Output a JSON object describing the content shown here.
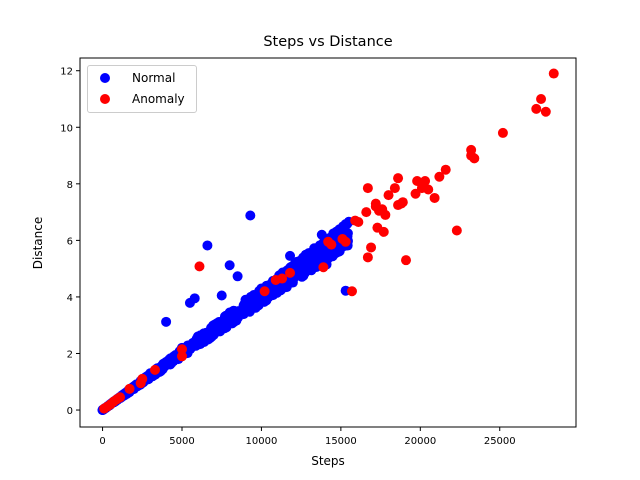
{
  "figure": {
    "title": "Steps vs Distance",
    "xlabel": "Steps",
    "ylabel": "Distance",
    "legend": [
      {
        "label": "Normal",
        "color": "#0000ff"
      },
      {
        "label": "Anomaly",
        "color": "#ff0000"
      }
    ]
  },
  "chart_data": {
    "type": "scatter",
    "title": "Steps vs Distance",
    "xlabel": "Steps",
    "ylabel": "Distance",
    "xlim": [
      -1420,
      29800
    ],
    "ylim": [
      -0.6,
      12.45
    ],
    "xticks": [
      0,
      5000,
      10000,
      15000,
      20000,
      25000
    ],
    "yticks": [
      0,
      2,
      4,
      6,
      8,
      10,
      12
    ],
    "grid": false,
    "legend_position": "upper left",
    "series": [
      {
        "name": "Normal",
        "color": "#0000ff",
        "band": {
          "slope_km_per_step_low": 0.000375,
          "slope_km_per_step_high": 0.00043,
          "x_max": 15500
        },
        "points": [
          [
            9300,
            6.88
          ],
          [
            6600,
            5.82
          ],
          [
            8000,
            5.12
          ],
          [
            8500,
            4.73
          ],
          [
            7500,
            4.05
          ],
          [
            5500,
            3.79
          ],
          [
            5800,
            3.95
          ],
          [
            4000,
            3.12
          ],
          [
            13800,
            6.2
          ],
          [
            15400,
            6.2
          ],
          [
            15300,
            4.22
          ],
          [
            13300,
            5.15
          ],
          [
            14100,
            5.15
          ],
          [
            11800,
            5.45
          ],
          [
            12500,
            5.3
          ],
          [
            12500,
            5.1
          ],
          [
            10000,
            4.3
          ],
          [
            9000,
            3.9
          ],
          [
            8000,
            3.45
          ],
          [
            7000,
            3.0
          ],
          [
            6000,
            2.6
          ],
          [
            5000,
            2.2
          ],
          [
            4000,
            1.7
          ],
          [
            3000,
            1.3
          ],
          [
            2000,
            0.85
          ],
          [
            1000,
            0.42
          ],
          [
            500,
            0.2
          ],
          [
            0,
            0.0
          ]
        ]
      },
      {
        "name": "Anomaly",
        "color": "#ff0000",
        "points": [
          [
            28400,
            11.9
          ],
          [
            27600,
            11.0
          ],
          [
            27300,
            10.65
          ],
          [
            27900,
            10.55
          ],
          [
            25200,
            9.8
          ],
          [
            23200,
            9.2
          ],
          [
            23400,
            8.9
          ],
          [
            23200,
            9.0
          ],
          [
            21600,
            8.5
          ],
          [
            21200,
            8.25
          ],
          [
            18600,
            8.2
          ],
          [
            19800,
            8.1
          ],
          [
            20300,
            8.1
          ],
          [
            16700,
            7.85
          ],
          [
            18400,
            7.85
          ],
          [
            20100,
            7.85
          ],
          [
            20500,
            7.8
          ],
          [
            19700,
            7.65
          ],
          [
            18000,
            7.6
          ],
          [
            20900,
            7.5
          ],
          [
            17200,
            7.3
          ],
          [
            18600,
            7.25
          ],
          [
            18800,
            7.3
          ],
          [
            18900,
            7.35
          ],
          [
            17200,
            7.2
          ],
          [
            17600,
            7.1
          ],
          [
            17400,
            7.05
          ],
          [
            16600,
            7.0
          ],
          [
            17800,
            6.9
          ],
          [
            15900,
            6.7
          ],
          [
            16100,
            6.65
          ],
          [
            22300,
            6.35
          ],
          [
            17300,
            6.45
          ],
          [
            17700,
            6.3
          ],
          [
            14200,
            5.95
          ],
          [
            14400,
            5.85
          ],
          [
            15100,
            6.05
          ],
          [
            15300,
            5.95
          ],
          [
            16900,
            5.75
          ],
          [
            16700,
            5.4
          ],
          [
            13900,
            5.05
          ],
          [
            19100,
            5.3
          ],
          [
            15700,
            4.2
          ],
          [
            6100,
            5.08
          ],
          [
            11800,
            4.85
          ],
          [
            11300,
            4.65
          ],
          [
            10900,
            4.6
          ],
          [
            10200,
            4.2
          ],
          [
            5000,
            2.15
          ],
          [
            5000,
            1.9
          ],
          [
            3300,
            1.42
          ],
          [
            2500,
            1.1
          ],
          [
            2400,
            0.95
          ],
          [
            1700,
            0.75
          ],
          [
            1100,
            0.45
          ],
          [
            900,
            0.38
          ],
          [
            700,
            0.3
          ],
          [
            500,
            0.2
          ],
          [
            300,
            0.12
          ],
          [
            100,
            0.05
          ]
        ]
      }
    ]
  }
}
